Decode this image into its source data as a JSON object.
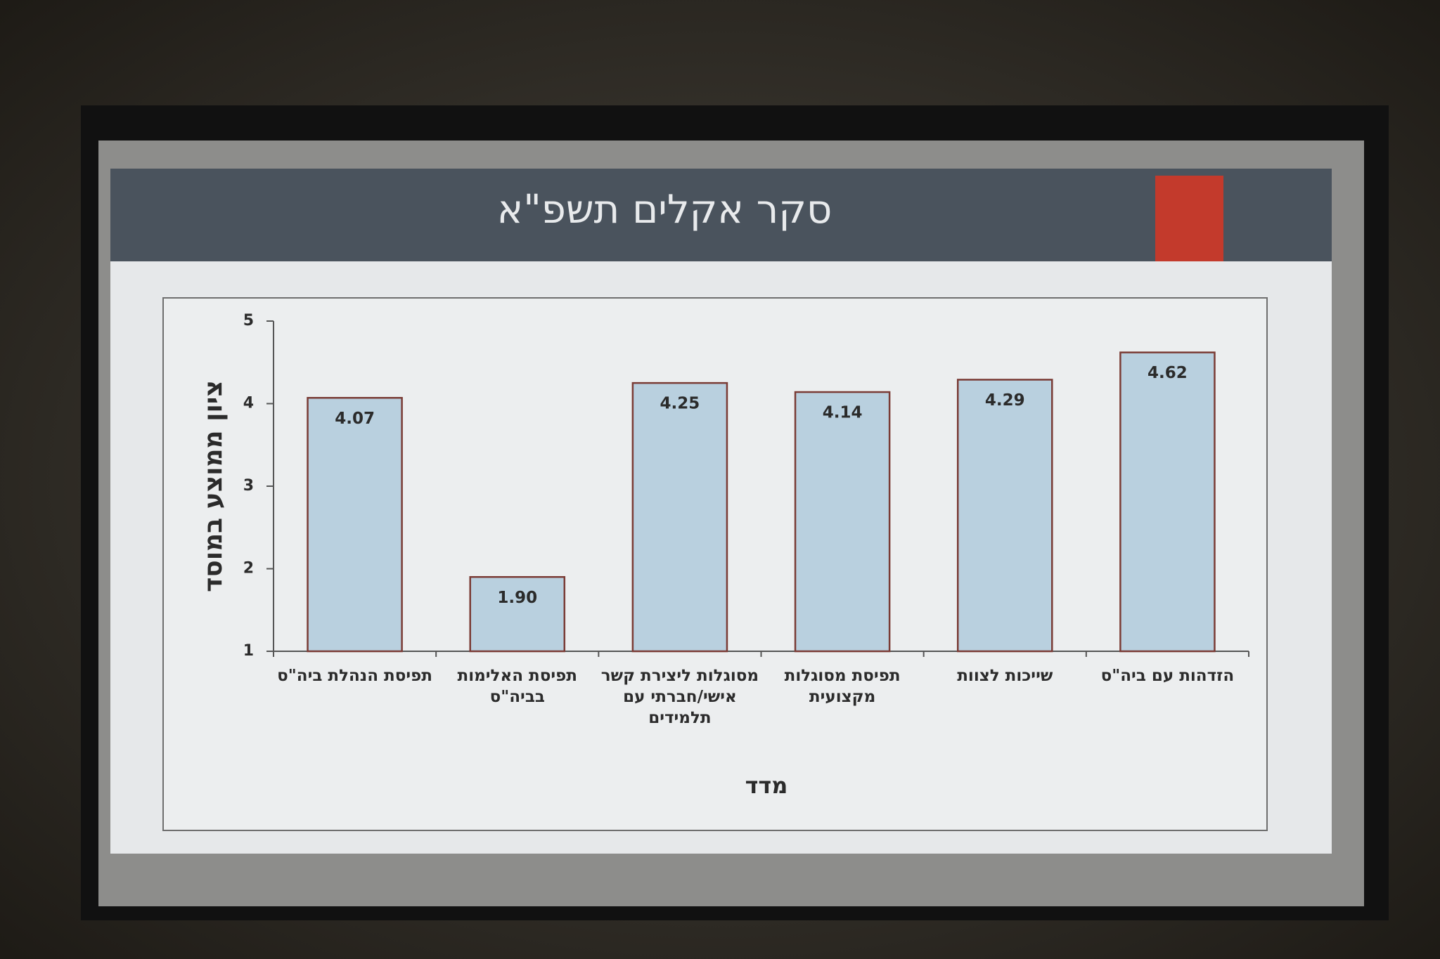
{
  "chart_data": {
    "type": "bar",
    "title": "סקר אקלים תשפ\"א",
    "ylabel": "ציון ממוצע במוסד",
    "xlabel": "מדד",
    "categories": [
      "תפיסת הנהלת ביה\"ס",
      "תפיסת האלימות בביה\"ס",
      "מסוגלות ליצירת קשר אישי/חברתי עם תלמידים",
      "תפיסת מסוגלות מקצועית",
      "שייכות לצוות",
      "הזדהות עם ביה\"ס"
    ],
    "values": [
      4.07,
      1.9,
      4.25,
      4.14,
      4.29,
      4.62
    ],
    "value_labels": [
      "4.07",
      "1.90",
      "4.25",
      "4.14",
      "4.29",
      "4.62"
    ],
    "color": "#b9d0df",
    "ylim": [
      1,
      5
    ],
    "yticks": [
      1,
      2,
      3,
      4,
      5
    ],
    "grid": false
  }
}
